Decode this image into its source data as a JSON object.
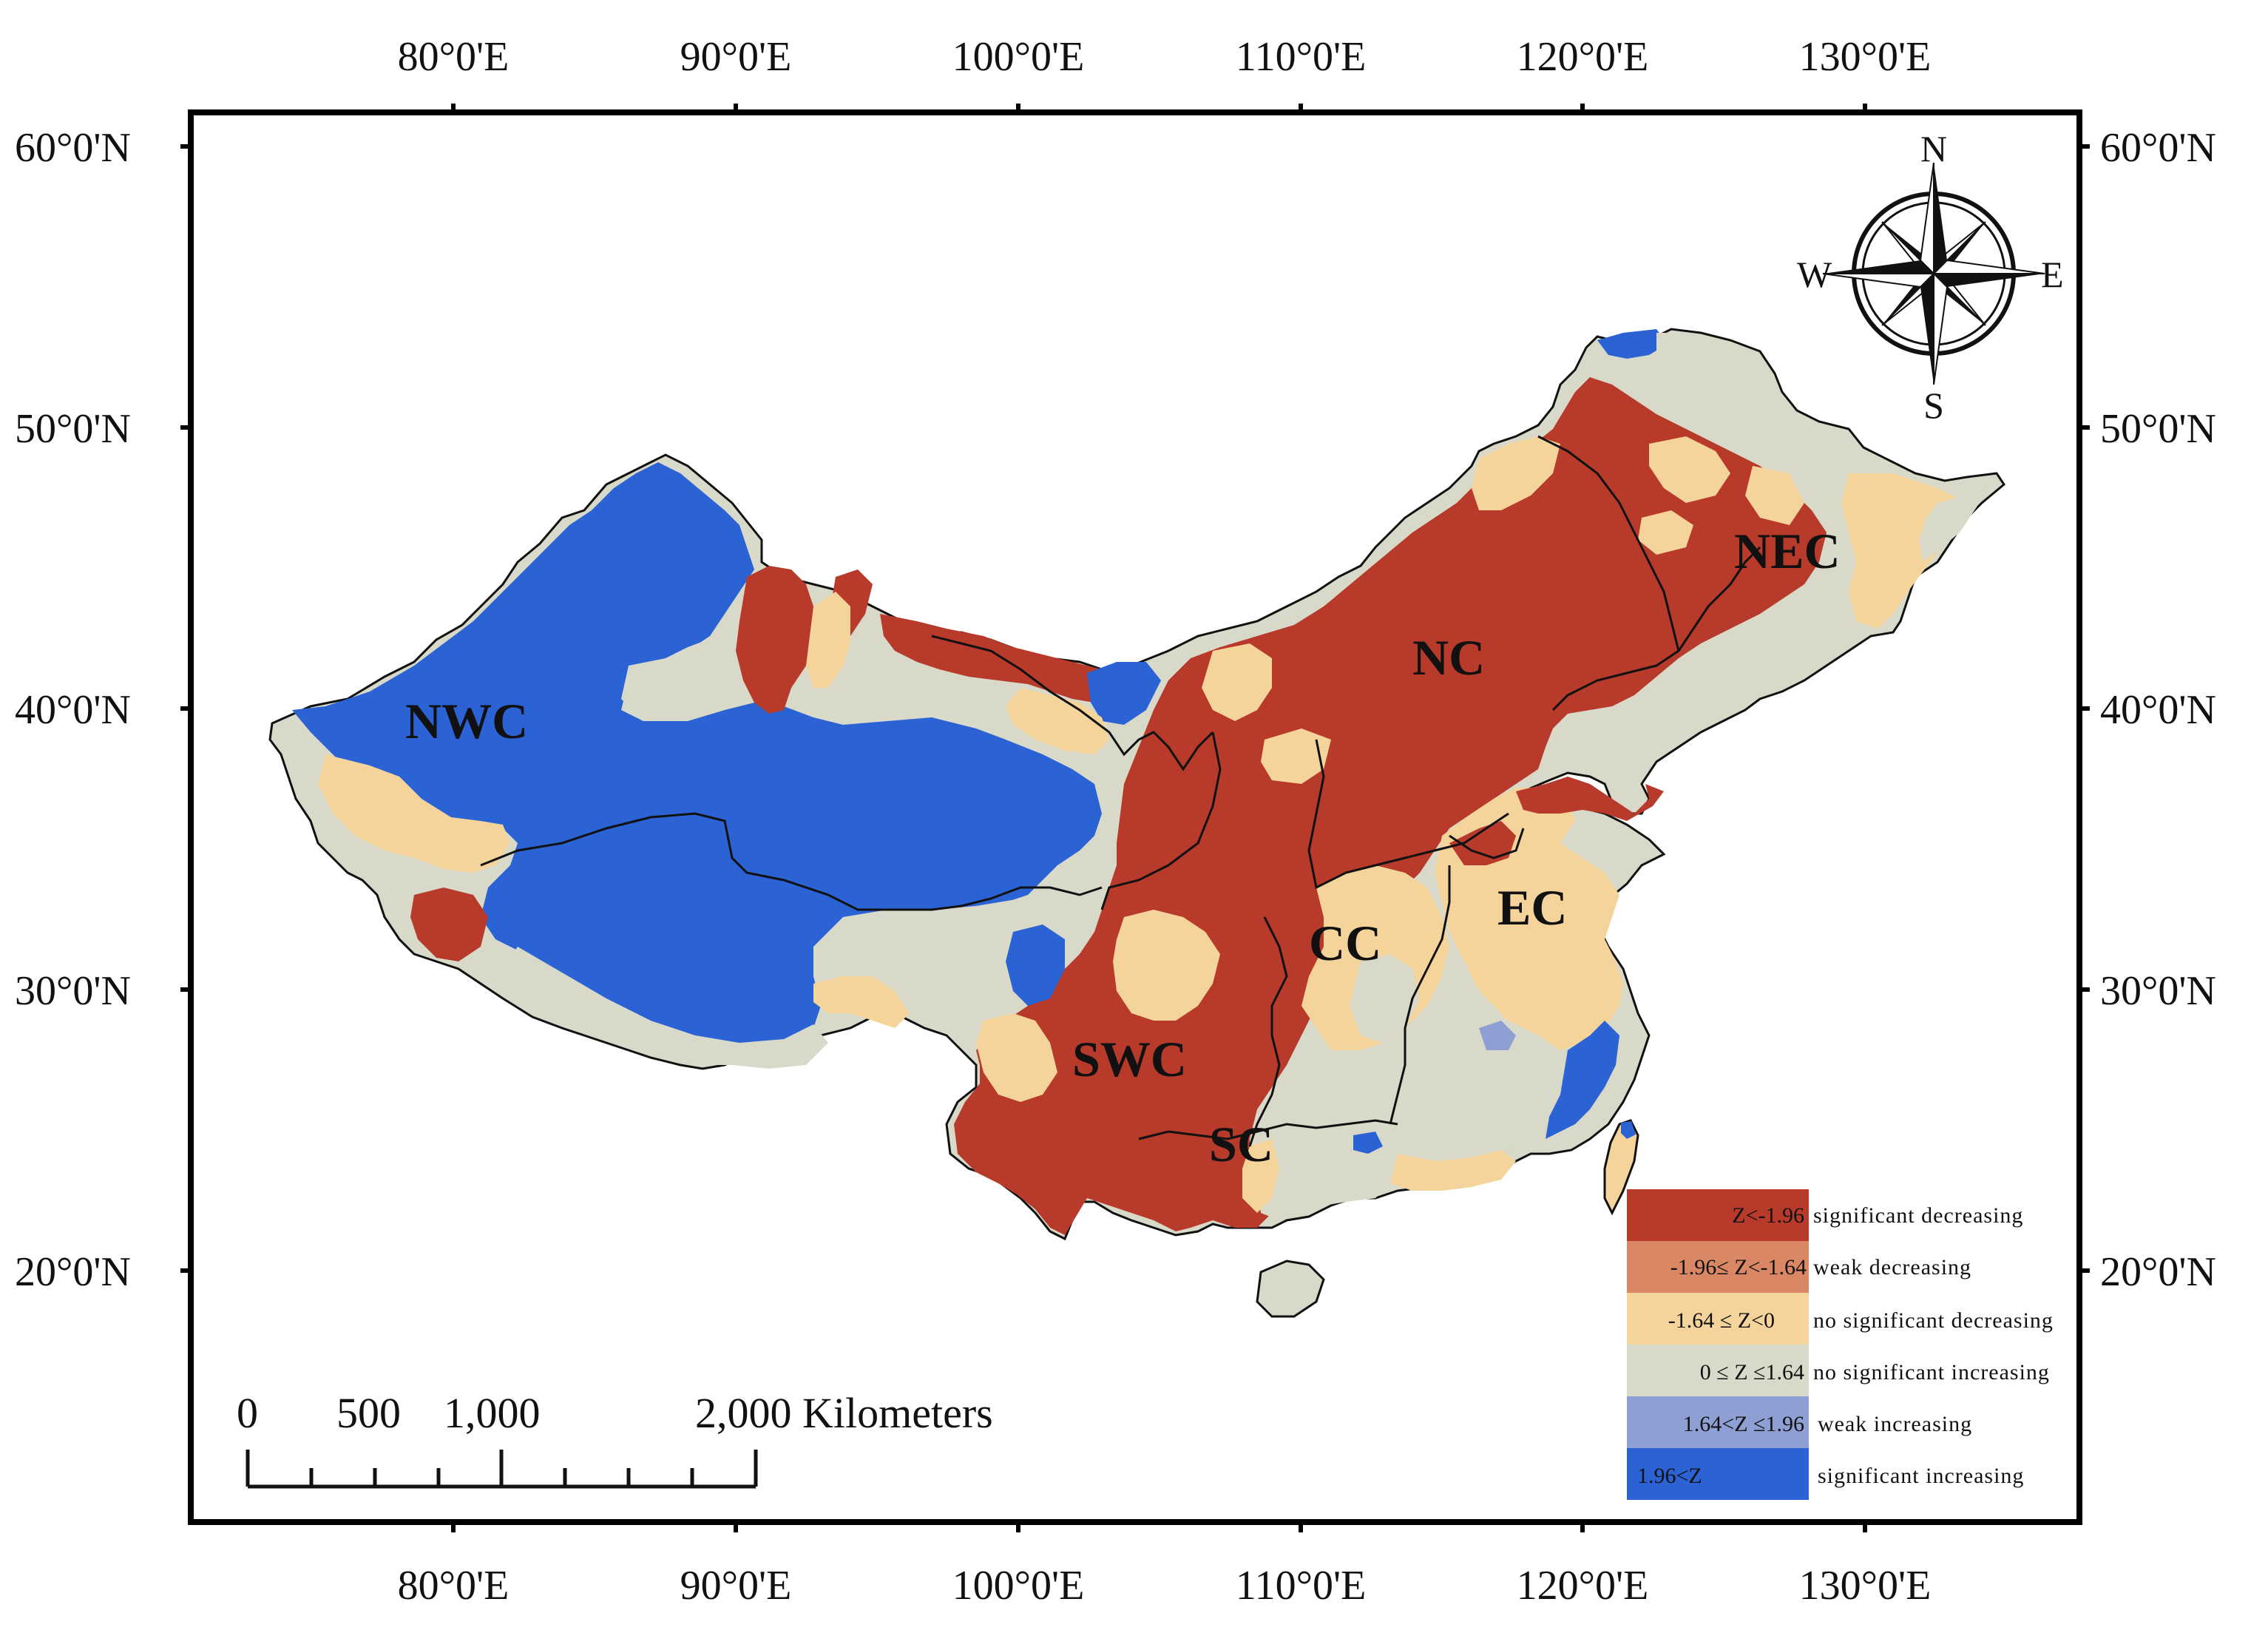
{
  "axes": {
    "longitude_labels": [
      "80°0'E",
      "90°0'E",
      "100°0'E",
      "110°0'E",
      "120°0'E",
      "130°0'E"
    ],
    "latitude_labels": [
      "60°0'N",
      "50°0'N",
      "40°0'N",
      "30°0'N",
      "20°0'N"
    ]
  },
  "regions": [
    {
      "id": "NWC",
      "label": "NWC"
    },
    {
      "id": "NC",
      "label": "NC"
    },
    {
      "id": "NEC",
      "label": "NEC"
    },
    {
      "id": "CC",
      "label": "CC"
    },
    {
      "id": "EC",
      "label": "EC"
    },
    {
      "id": "SWC",
      "label": "SWC"
    },
    {
      "id": "SC",
      "label": "SC"
    }
  ],
  "compass": {
    "north": "N",
    "south": "S",
    "east": "E",
    "west": "W"
  },
  "legend": [
    {
      "range": "Z<-1.96",
      "description": "significant decreasing",
      "color": "#b83a2a"
    },
    {
      "range": "-1.96≤ Z<-1.64",
      "description": "weak decreasing",
      "color": "#d98764"
    },
    {
      "range": "-1.64 ≤ Z<0",
      "description": "no significant decreasing",
      "color": "#f5d49c"
    },
    {
      "range": "0 ≤ Z ≤1.64",
      "description": "no significant increasing",
      "color": "#d9d9c9"
    },
    {
      "range": "1.64<Z ≤1.96",
      "description": "weak increasing",
      "color": "#8e9fd4"
    },
    {
      "range": "1.96<Z",
      "description": "significant increasing",
      "color": "#2b63d4"
    }
  ],
  "scale_bar": {
    "labels": [
      "0",
      "500",
      "1,000",
      "2,000 Kilometers"
    ]
  },
  "colors": {
    "sig_dec": "#b83a2a",
    "weak_dec": "#d98764",
    "nosig_dec": "#f5d49c",
    "nosig_inc": "#d9d9c9",
    "weak_inc": "#8e9fd4",
    "sig_inc": "#2b63d4"
  }
}
